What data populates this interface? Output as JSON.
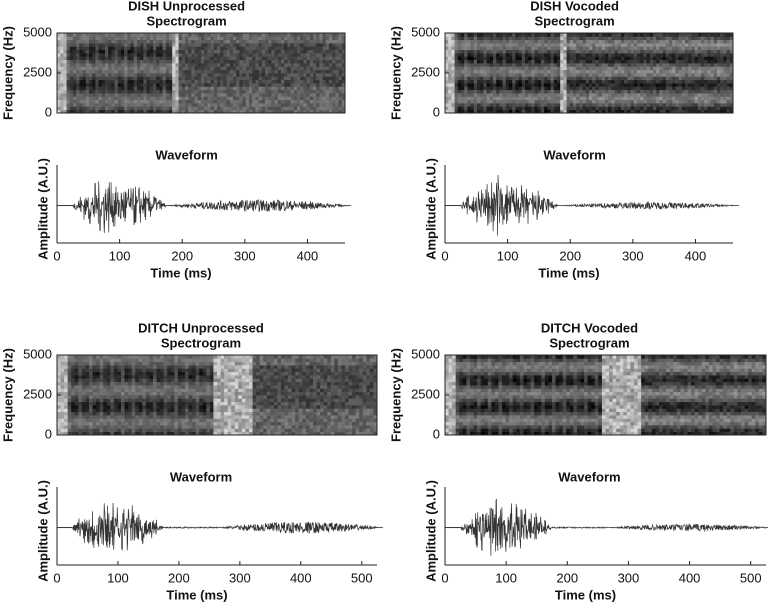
{
  "chart_data": [
    {
      "type": "spectrogram",
      "title": [
        "DISH Unprocessed",
        "Spectrogram"
      ],
      "ylabel": "Frequency (Hz)",
      "ylim": [
        0,
        5000
      ],
      "yticks": [
        0,
        2500,
        5000
      ]
    },
    {
      "type": "waveform",
      "title": [
        "Waveform"
      ],
      "ylabel": "Amplitude (A.U.)",
      "xlabel": "Time (ms)",
      "xlim": [
        0,
        460
      ],
      "xticks": [
        0,
        100,
        200,
        300,
        400
      ]
    },
    {
      "type": "spectrogram",
      "title": [
        "DISH Vocoded",
        "Spectrogram"
      ],
      "ylabel": "Frequency (Hz)",
      "ylim": [
        0,
        5000
      ],
      "yticks": [
        0,
        2500,
        5000
      ]
    },
    {
      "type": "waveform",
      "title": [
        "Waveform"
      ],
      "ylabel": "Amplitude (A.U.)",
      "xlabel": "Time (ms)",
      "xlim": [
        0,
        460
      ],
      "xticks": [
        0,
        100,
        200,
        300,
        400
      ]
    },
    {
      "type": "spectrogram",
      "title": [
        "DITCH Unprocessed",
        "Spectrogram"
      ],
      "ylabel": "Frequency (Hz)",
      "ylim": [
        0,
        5000
      ],
      "yticks": [
        0,
        2500,
        5000
      ]
    },
    {
      "type": "waveform",
      "title": [
        "Waveform"
      ],
      "ylabel": "Amplitude (A.U.)",
      "xlabel": "Time (ms)",
      "xlim": [
        0,
        525
      ],
      "xticks": [
        0,
        100,
        200,
        300,
        400,
        500
      ]
    },
    {
      "type": "spectrogram",
      "title": [
        "DITCH Vocoded",
        "Spectrogram"
      ],
      "ylabel": "Frequency (Hz)",
      "ylim": [
        0,
        5000
      ],
      "yticks": [
        0,
        2500,
        5000
      ]
    },
    {
      "type": "waveform",
      "title": [
        "Waveform"
      ],
      "ylabel": "Amplitude (A.U.)",
      "xlabel": "Time (ms)",
      "xlim": [
        0,
        525
      ],
      "xticks": [
        0,
        100,
        200,
        300,
        400,
        500
      ]
    }
  ]
}
